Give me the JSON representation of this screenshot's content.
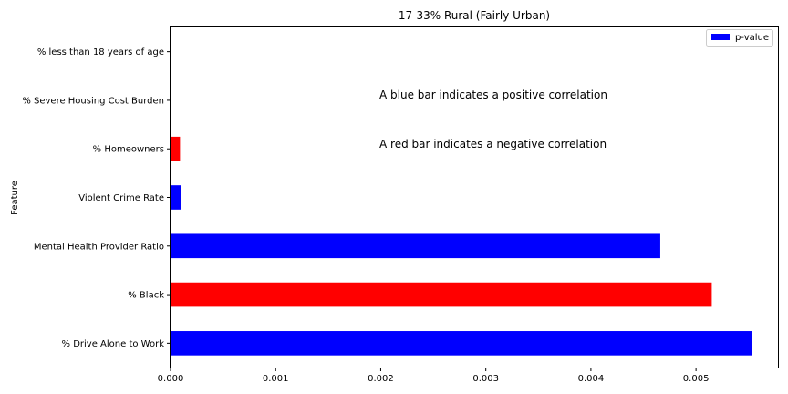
{
  "chart_data": {
    "type": "bar",
    "orientation": "horizontal",
    "title": "17-33% Rural (Fairly Urban)",
    "xlabel": "",
    "ylabel": "Feature",
    "xlim": [
      0,
      0.00578
    ],
    "xticks": [
      "0.000",
      "0.001",
      "0.002",
      "0.003",
      "0.004",
      "0.005"
    ],
    "xtick_values": [
      0,
      0.001,
      0.002,
      0.003,
      0.004,
      0.005
    ],
    "categories": [
      "% less than 18 years of age",
      "% Severe Housing Cost Burden",
      "% Homeowners",
      "Violent Crime Rate",
      "Mental Health Provider Ratio",
      "% Black",
      "% Drive Alone to Work"
    ],
    "values": [
      0.0,
      0.0,
      9e-05,
      0.0001,
      0.00466,
      0.00515,
      0.00553
    ],
    "bar_colors": [
      "#0000ff",
      "#0000ff",
      "#ff0000",
      "#0000ff",
      "#0000ff",
      "#ff0000",
      "#0000ff"
    ],
    "series": [
      {
        "name": "p-value",
        "color": "#0000ff"
      }
    ],
    "legend_placement": "top-right",
    "grid": false,
    "annotations": [
      "A blue bar indicates a positive correlation",
      "A red bar indicates a negative correlation"
    ]
  }
}
